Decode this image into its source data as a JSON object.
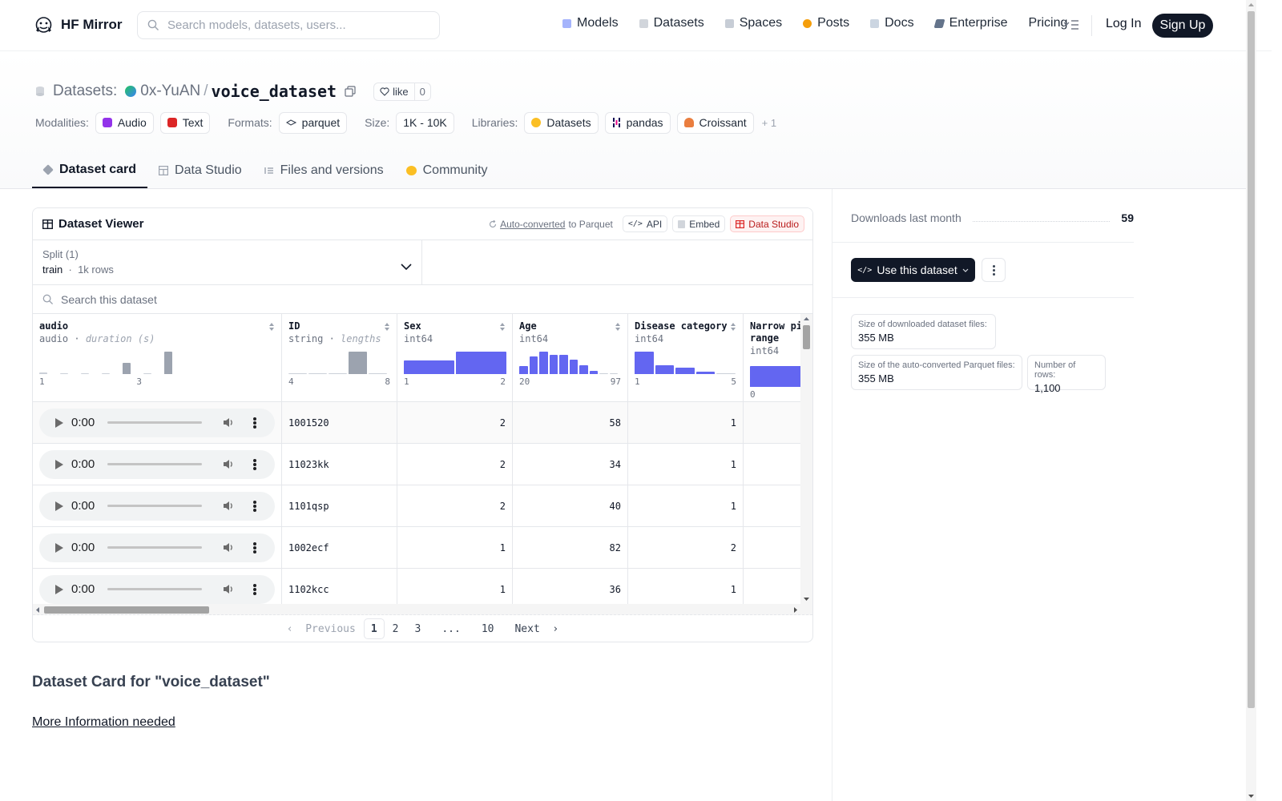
{
  "nav": {
    "brand": "HF Mirror",
    "search_placeholder": "Search models, datasets, users...",
    "links": [
      "Models",
      "Datasets",
      "Spaces",
      "Posts",
      "Docs",
      "Enterprise",
      "Pricing"
    ],
    "login": "Log In",
    "signup": "Sign Up"
  },
  "header": {
    "label": "Datasets:",
    "org": "0x-YuAN",
    "repo": "voice_dataset",
    "like": "like",
    "like_count": "0",
    "modalities_label": "Modalities:",
    "modalities": [
      "Audio",
      "Text"
    ],
    "formats_label": "Formats:",
    "formats": [
      "parquet"
    ],
    "size_label": "Size:",
    "size": "1K - 10K",
    "libraries_label": "Libraries:",
    "libraries": [
      "Datasets",
      "pandas",
      "Croissant"
    ],
    "libraries_more": "+ 1"
  },
  "tabs": [
    "Dataset card",
    "Data Studio",
    "Files and versions",
    "Community"
  ],
  "viewer": {
    "title": "Dataset Viewer",
    "auto_converted": "Auto-converted",
    "to_parquet": "to Parquet",
    "api": "API",
    "embed": "Embed",
    "data_studio": "Data Studio",
    "split_label": "Split (1)",
    "split_name": "train",
    "split_rows": "1k rows",
    "search_placeholder": "Search this dataset",
    "columns": [
      {
        "name": "audio",
        "type": "audio",
        "stat": "duration (s)",
        "min": "1",
        "max": "3"
      },
      {
        "name": "ID",
        "type": "string",
        "stat": "lengths",
        "min": "4",
        "max": "8"
      },
      {
        "name": "Sex",
        "type": "int64",
        "stat": "",
        "min": "1",
        "max": "2"
      },
      {
        "name": "Age",
        "type": "int64",
        "stat": "",
        "min": "20",
        "max": "97"
      },
      {
        "name": "Disease category",
        "type": "int64",
        "stat": "",
        "min": "1",
        "max": "5"
      },
      {
        "name": "Narrow pi\nrange",
        "type": "int64",
        "stat": "",
        "min": "0",
        "max": ""
      }
    ],
    "histograms": {
      "audio": [
        0.08,
        0.0,
        0.05,
        0.0,
        0.5,
        0.0,
        1.0
      ],
      "ID": [
        0.05,
        0.05,
        0.05,
        1.0,
        0.05
      ],
      "Sex": [
        0.6,
        1.0
      ],
      "Age": [
        0.35,
        0.8,
        1.0,
        0.85,
        0.85,
        0.65,
        0.4,
        0.15,
        0.05,
        0.05
      ],
      "Disease category": [
        1.0,
        0.4,
        0.3,
        0.1,
        0.05
      ],
      "Narrow pi range": [
        1.0
      ]
    },
    "player_time": "0:00",
    "rows": [
      {
        "ID": "1001520",
        "Sex": "2",
        "Age": "58",
        "Disease": "1"
      },
      {
        "ID": "11023kk",
        "Sex": "2",
        "Age": "34",
        "Disease": "1"
      },
      {
        "ID": "1101qsp",
        "Sex": "2",
        "Age": "40",
        "Disease": "1"
      },
      {
        "ID": "1002ecf",
        "Sex": "1",
        "Age": "82",
        "Disease": "2"
      },
      {
        "ID": "1102kcc",
        "Sex": "1",
        "Age": "36",
        "Disease": "1"
      }
    ],
    "pager": {
      "prev": "Previous",
      "pages": [
        "1",
        "2",
        "3",
        "...",
        "10"
      ],
      "next": "Next",
      "current": "1"
    }
  },
  "card": {
    "title": "Dataset Card for \"voice_dataset\"",
    "more_info": "More Information needed"
  },
  "sidebar": {
    "downloads_label": "Downloads last month",
    "downloads_value": "59",
    "use_button": "Use this dataset",
    "stats": [
      {
        "label": "Size of downloaded dataset files:",
        "value": "355 MB"
      },
      {
        "label": "Size of the auto-converted Parquet files:",
        "value": "355 MB"
      },
      {
        "label": "Number of rows:",
        "value": "1,100"
      }
    ]
  },
  "colors": {
    "accent_bar": "#6366f1",
    "gray_bar": "#9ca3af",
    "dark": "#111827"
  }
}
